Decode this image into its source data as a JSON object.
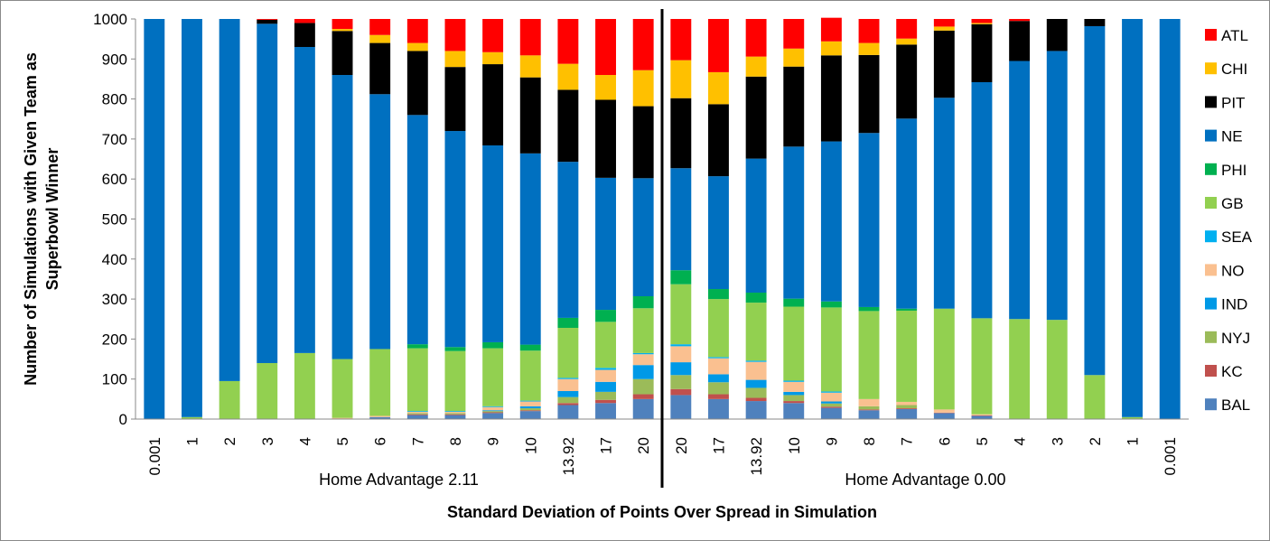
{
  "chart_data": {
    "type": "bar",
    "stacked": true,
    "xlabel": "Standard Deviation of Points Over Spread in Simulation",
    "ylabel_lines": [
      "Number of Simulations with Given Team as",
      "Superbowl Winner"
    ],
    "ylim": [
      0,
      1000
    ],
    "yticks": [
      0,
      100,
      200,
      300,
      400,
      500,
      600,
      700,
      800,
      900,
      1000
    ],
    "grid": false,
    "legend_position": "right",
    "categories": [
      "0.001",
      "1",
      "2",
      "3",
      "4",
      "5",
      "6",
      "7",
      "8",
      "9",
      "10",
      "13.92",
      "17",
      "20",
      "20",
      "17",
      "13.92",
      "10",
      "9",
      "8",
      "7",
      "6",
      "5",
      "4",
      "3",
      "2",
      "1",
      "0.001"
    ],
    "groups": [
      {
        "label": "Home Advantage 2.11",
        "start": 0,
        "end": 13
      },
      {
        "label": "Home Advantage 0.00",
        "start": 14,
        "end": 27
      }
    ],
    "series": [
      {
        "name": "BAL",
        "color": "#4f81bd",
        "values": [
          0,
          0,
          0,
          0,
          0,
          0,
          5,
          10,
          10,
          15,
          20,
          35,
          40,
          50,
          60,
          50,
          45,
          40,
          28,
          22,
          25,
          15,
          8,
          0,
          0,
          0,
          0,
          0
        ]
      },
      {
        "name": "KC",
        "color": "#c0504d",
        "values": [
          0,
          0,
          0,
          0,
          0,
          0,
          0,
          2,
          2,
          2,
          2,
          5,
          8,
          12,
          15,
          12,
          8,
          5,
          3,
          2,
          2,
          1,
          1,
          0,
          0,
          0,
          0,
          0
        ]
      },
      {
        "name": "NYJ",
        "color": "#9bbb59",
        "values": [
          0,
          0,
          0,
          0,
          0,
          0,
          0,
          3,
          3,
          3,
          5,
          15,
          20,
          38,
          35,
          30,
          25,
          15,
          8,
          8,
          8,
          0,
          0,
          0,
          0,
          0,
          0,
          0
        ]
      },
      {
        "name": "IND",
        "color": "#0099e6",
        "values": [
          0,
          0,
          0,
          0,
          0,
          0,
          0,
          0,
          0,
          2,
          5,
          15,
          25,
          35,
          32,
          20,
          20,
          8,
          5,
          0,
          0,
          0,
          0,
          0,
          0,
          0,
          0,
          0
        ]
      },
      {
        "name": "NO",
        "color": "#fac090",
        "values": [
          0,
          0,
          0,
          0,
          0,
          3,
          3,
          3,
          3,
          8,
          12,
          30,
          30,
          27,
          40,
          40,
          45,
          25,
          22,
          18,
          8,
          8,
          3,
          0,
          0,
          0,
          0,
          0
        ]
      },
      {
        "name": "SEA",
        "color": "#00b0f0",
        "values": [
          0,
          0,
          0,
          0,
          0,
          0,
          0,
          2,
          2,
          2,
          2,
          3,
          5,
          3,
          5,
          3,
          3,
          3,
          3,
          0,
          0,
          0,
          0,
          0,
          0,
          0,
          0,
          0
        ]
      },
      {
        "name": "GB",
        "color": "#92d050",
        "values": [
          0,
          5,
          95,
          140,
          165,
          147,
          167,
          157,
          150,
          145,
          125,
          125,
          115,
          112,
          150,
          145,
          145,
          185,
          210,
          220,
          228,
          252,
          240,
          250,
          248,
          110,
          5,
          0
        ]
      },
      {
        "name": "PHI",
        "color": "#00b050",
        "values": [
          0,
          0,
          0,
          0,
          0,
          0,
          0,
          10,
          10,
          15,
          15,
          25,
          30,
          30,
          35,
          25,
          25,
          20,
          15,
          10,
          5,
          0,
          0,
          0,
          0,
          0,
          0,
          0
        ]
      },
      {
        "name": "NE",
        "color": "#0070c0",
        "values": [
          1000,
          995,
          905,
          848,
          765,
          710,
          637,
          573,
          540,
          492,
          478,
          390,
          330,
          295,
          255,
          282,
          335,
          380,
          400,
          435,
          475,
          527,
          590,
          645,
          672,
          872,
          995,
          1000
        ]
      },
      {
        "name": "PIT",
        "color": "#000000",
        "values": [
          0,
          0,
          0,
          10,
          60,
          110,
          128,
          160,
          160,
          203,
          190,
          180,
          195,
          180,
          175,
          180,
          205,
          200,
          215,
          195,
          185,
          168,
          145,
          100,
          80,
          18,
          0,
          0
        ]
      },
      {
        "name": "CHI",
        "color": "#ffc000",
        "values": [
          0,
          0,
          0,
          0,
          0,
          5,
          20,
          20,
          40,
          30,
          55,
          65,
          62,
          90,
          95,
          80,
          50,
          45,
          35,
          30,
          15,
          10,
          3,
          0,
          0,
          0,
          0,
          0
        ]
      },
      {
        "name": "ATL",
        "color": "#ff0000",
        "values": [
          0,
          0,
          0,
          2,
          10,
          25,
          40,
          60,
          80,
          83,
          91,
          112,
          140,
          128,
          103,
          133,
          94,
          74,
          59,
          60,
          49,
          19,
          10,
          5,
          0,
          0,
          0,
          0
        ]
      }
    ]
  }
}
